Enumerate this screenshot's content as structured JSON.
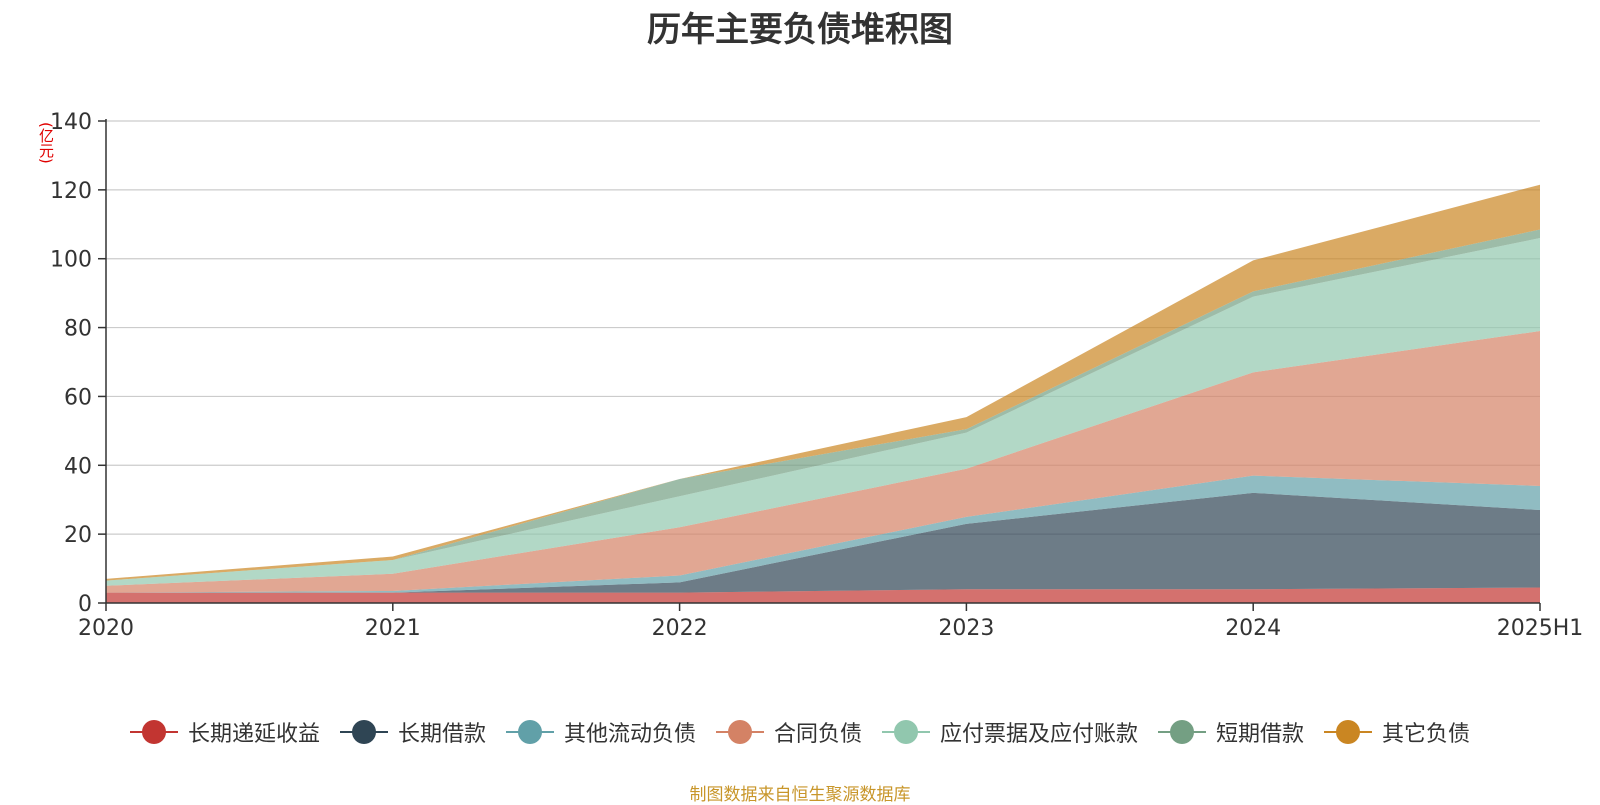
{
  "chart_data": {
    "type": "area",
    "stacked": true,
    "title": "历年主要负债堆积图",
    "unit_label": "(亿元)",
    "categories": [
      "2020",
      "2021",
      "2022",
      "2023",
      "2024",
      "2025H1"
    ],
    "ylim": [
      0,
      140
    ],
    "yticks": [
      0,
      20,
      40,
      60,
      80,
      100,
      120,
      140
    ],
    "grid": true,
    "legend_position": "bottom",
    "series": [
      {
        "name": "长期递延收益",
        "color": "#c23531",
        "values": [
          3.0,
          3.0,
          3.0,
          4.0,
          4.0,
          4.5
        ]
      },
      {
        "name": "长期借款",
        "color": "#2f4554",
        "values": [
          0,
          0,
          3.0,
          19.0,
          28.0,
          22.5
        ]
      },
      {
        "name": "其他流动负债",
        "color": "#61a0a8",
        "values": [
          0,
          0.5,
          2.0,
          2.0,
          5.0,
          7.0
        ]
      },
      {
        "name": "合同负债",
        "color": "#d48265",
        "values": [
          2.0,
          5.0,
          14.0,
          14.0,
          30.0,
          45.0
        ]
      },
      {
        "name": "应付票据及应付账款",
        "color": "#91c7ae",
        "values": [
          1.5,
          4.0,
          9.0,
          10.5,
          22.0,
          27.0
        ]
      },
      {
        "name": "短期借款",
        "color": "#749f83",
        "values": [
          0,
          0,
          5.0,
          1.0,
          1.5,
          2.5
        ]
      },
      {
        "name": "其它负债",
        "color": "#ca8622",
        "values": [
          0.5,
          1.0,
          0,
          3.5,
          9.0,
          13.0
        ]
      }
    ]
  },
  "source_text": "制图数据来自恒生聚源数据库"
}
